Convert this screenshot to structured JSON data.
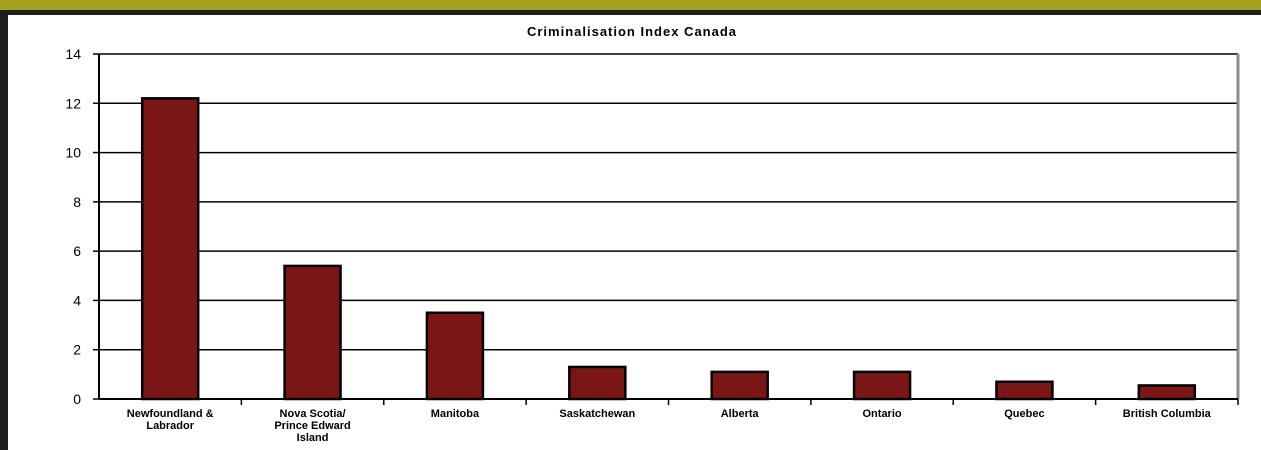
{
  "chart_data": {
    "type": "bar",
    "title": "Criminalisation Index Canada",
    "xlabel": "",
    "ylabel": "",
    "categories": [
      "Newfoundland & Labrador",
      "Nova Scotia/ Prince Edward Island",
      "Manitoba",
      "Saskatchewan",
      "Alberta",
      "Ontario",
      "Quebec",
      "British Columbia"
    ],
    "category_lines": [
      [
        "Newfoundland &",
        "Labrador"
      ],
      [
        "Nova Scotia/",
        "Prince Edward",
        "Island"
      ],
      [
        "Manitoba"
      ],
      [
        "Saskatchewan"
      ],
      [
        "Alberta"
      ],
      [
        "Ontario"
      ],
      [
        "Quebec"
      ],
      [
        "British Columbia"
      ]
    ],
    "values": [
      12.2,
      5.4,
      3.5,
      1.3,
      1.1,
      1.1,
      0.7,
      0.55
    ],
    "ylim": [
      0,
      14
    ],
    "yticks": [
      "0",
      "2",
      "4",
      "6",
      "8",
      "10",
      "12",
      "14"
    ],
    "grid": true,
    "legend": "none",
    "bar_color": "#7a1616"
  },
  "colors": {
    "top_bar": "#a6a11a",
    "frame": "#1f1f1f",
    "bar": "#7a1616",
    "bar_outline": "#000000",
    "plot_border": "#8c8c8c"
  }
}
